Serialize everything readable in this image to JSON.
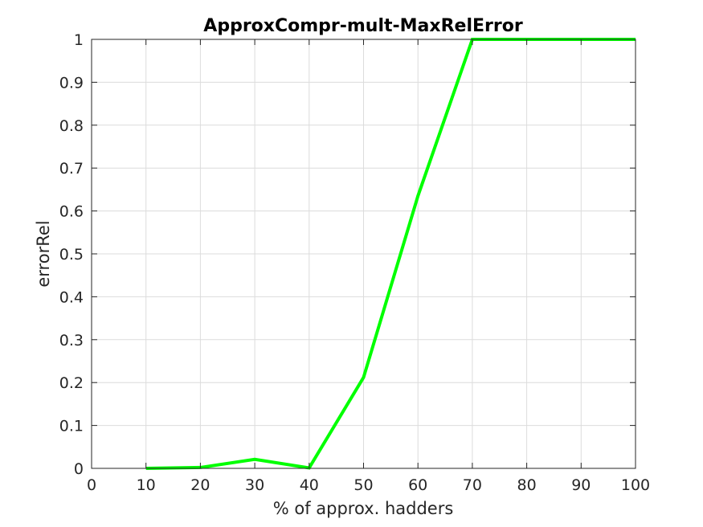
{
  "chart_data": {
    "type": "line",
    "title": "ApproxCompr-mult-MaxRelError",
    "xlabel": "% of approx. hadders",
    "ylabel": "errorRel",
    "xlim": [
      0,
      100
    ],
    "ylim": [
      0,
      1
    ],
    "xticks": [
      0,
      10,
      20,
      30,
      40,
      50,
      60,
      70,
      80,
      90,
      100
    ],
    "yticks": [
      0,
      0.1,
      0.2,
      0.3,
      0.4,
      0.5,
      0.6,
      0.7,
      0.8,
      0.9,
      1
    ],
    "xtick_labels": [
      "0",
      "10",
      "20",
      "30",
      "40",
      "50",
      "60",
      "70",
      "80",
      "90",
      "100"
    ],
    "ytick_labels": [
      "0",
      "0.1",
      "0.2",
      "0.3",
      "0.4",
      "0.5",
      "0.6",
      "0.7",
      "0.8",
      "0.9",
      "1"
    ],
    "grid": true,
    "series": [
      {
        "color": "#00ff00",
        "x": [
          10,
          20,
          30,
          40,
          50,
          60,
          70,
          80,
          90,
          100
        ],
        "y": [
          0,
          0.002,
          0.021,
          0.001,
          0.212,
          0.635,
          1,
          1,
          1,
          1
        ]
      }
    ]
  }
}
